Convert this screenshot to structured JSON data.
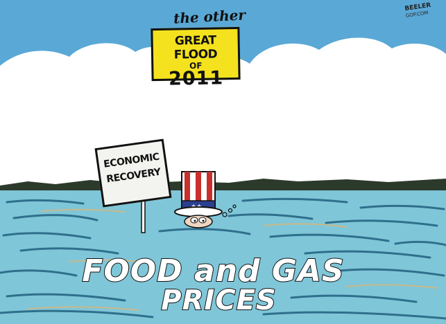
{
  "cartoon": {
    "header_text": "the other",
    "flood_sign": {
      "line1": "GREAT FLOOD",
      "line2": "OF",
      "line3": "2011",
      "color": "#f4e21e"
    },
    "signature": {
      "name": "BEELER",
      "sub": "GOP.COM"
    },
    "economic_sign": {
      "line1": "ECONOMIC",
      "line2": "RECOVERY"
    },
    "water_text": {
      "line1": "FOOD and GAS",
      "line2": "PRICES"
    },
    "figure": "uncle-sam-hat",
    "colors": {
      "sky": "#5aa8d6",
      "cloud": "#ffffff",
      "water": "#7fc6d8",
      "water_dark": "#2f6f8c",
      "hat_red": "#c9302c",
      "hat_blue": "#2b3f8f"
    }
  }
}
